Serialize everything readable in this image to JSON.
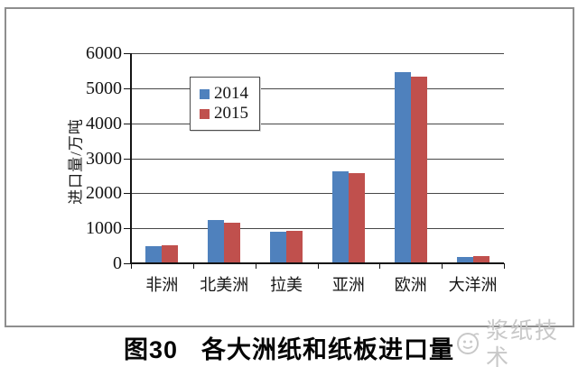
{
  "chart_data": {
    "type": "bar",
    "title": "各大洲纸和纸板进口量",
    "fig_label": "图30",
    "ylabel": "进口量/万吨",
    "categories": [
      "非洲",
      "北美洲",
      "拉美",
      "亚洲",
      "欧洲",
      "大洋洲"
    ],
    "series": [
      {
        "name": "2014",
        "color": "#4f81bd",
        "values": [
          495,
          1240,
          910,
          2630,
          5450,
          190
        ]
      },
      {
        "name": "2015",
        "color": "#c0504d",
        "values": [
          510,
          1170,
          915,
          2580,
          5330,
          195
        ]
      }
    ],
    "ylim": [
      0,
      6000
    ],
    "yticks": [
      0,
      1000,
      2000,
      3000,
      4000,
      5000,
      6000
    ],
    "grid": "horizontal",
    "legend_position": "upper-left-inside"
  },
  "caption": {
    "fig_label": "图30",
    "title": "各大洲纸和纸板进口量"
  },
  "watermark": {
    "text": "浆纸技术",
    "logo": "pulp-paper-tech-logo"
  },
  "colors": {
    "bar_2014": "#4f81bd",
    "bar_2015": "#c0504d",
    "gridline": "#474747",
    "axis": "#141414",
    "box_border": "#8e8e8e",
    "watermark": "#c8c8c8"
  }
}
